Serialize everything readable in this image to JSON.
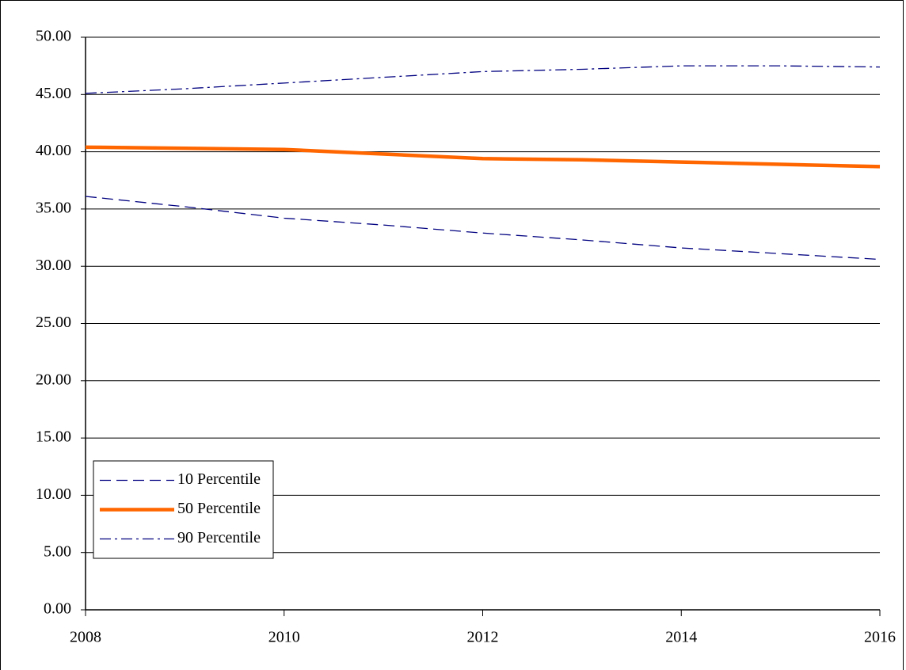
{
  "chart_data": {
    "type": "line",
    "x": [
      2008,
      2009,
      2010,
      2011,
      2012,
      2013,
      2014,
      2015,
      2016
    ],
    "series": [
      {
        "name": "10 Percentile",
        "color": "#000080",
        "line_style": "dashed",
        "values": [
          36.1,
          35.2,
          34.2,
          33.6,
          32.9,
          32.3,
          31.6,
          31.1,
          30.6
        ]
      },
      {
        "name": "50 Percentile",
        "color": "#ff6600",
        "line_style": "solid",
        "values": [
          40.4,
          40.3,
          40.2,
          39.8,
          39.4,
          39.3,
          39.1,
          38.9,
          38.7
        ]
      },
      {
        "name": "90 Percentile",
        "color": "#000080",
        "line_style": "dashdot",
        "values": [
          45.1,
          45.5,
          46.0,
          46.5,
          47.0,
          47.2,
          47.5,
          47.5,
          47.4
        ]
      }
    ],
    "xlim": [
      2008,
      2016
    ],
    "xticks": [
      2008,
      2010,
      2012,
      2014,
      2016
    ],
    "ylim": [
      0,
      50
    ],
    "yticks": [
      {
        "value": 0,
        "label": "0.00"
      },
      {
        "value": 5,
        "label": "5.00"
      },
      {
        "value": 10,
        "label": "10.00"
      },
      {
        "value": 15,
        "label": "15.00"
      },
      {
        "value": 20,
        "label": "20.00"
      },
      {
        "value": 25,
        "label": "25.00"
      },
      {
        "value": 30,
        "label": "30.00"
      },
      {
        "value": 35,
        "label": "35.00"
      },
      {
        "value": 40,
        "label": "40.00"
      },
      {
        "value": 45,
        "label": "45.00"
      },
      {
        "value": 50,
        "label": "50.00"
      }
    ],
    "grid": true,
    "legend": "lower left"
  }
}
